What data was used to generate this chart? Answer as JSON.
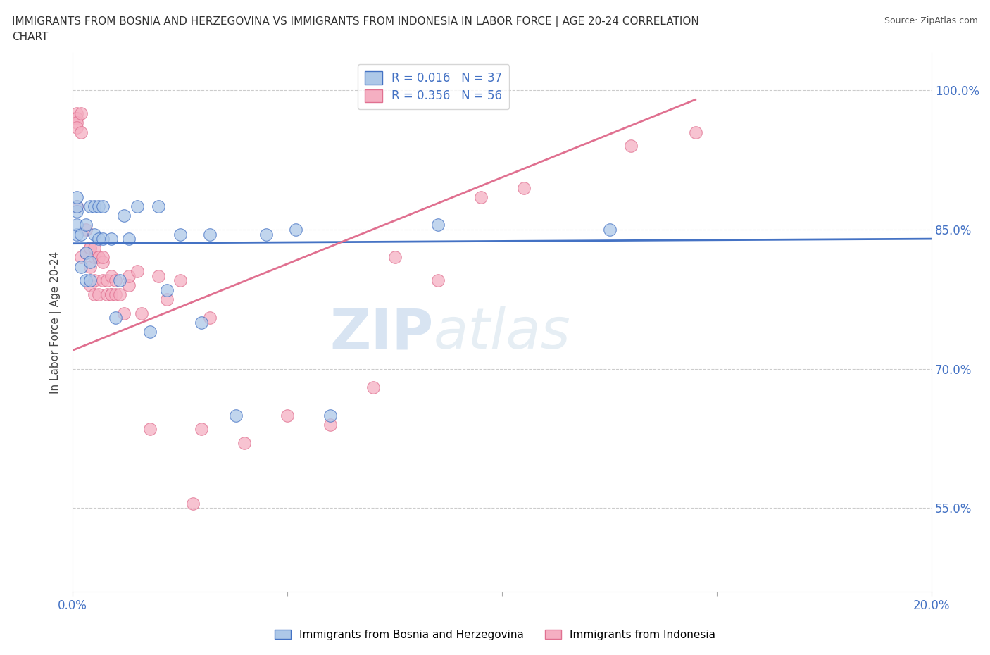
{
  "title_line1": "IMMIGRANTS FROM BOSNIA AND HERZEGOVINA VS IMMIGRANTS FROM INDONESIA IN LABOR FORCE | AGE 20-24 CORRELATION",
  "title_line2": "CHART",
  "source": "Source: ZipAtlas.com",
  "ylabel": "In Labor Force | Age 20-24",
  "xlim": [
    0.0,
    0.2
  ],
  "ylim": [
    0.46,
    1.04
  ],
  "yticks": [
    0.55,
    0.7,
    0.85,
    1.0
  ],
  "ytick_labels": [
    "55.0%",
    "70.0%",
    "85.0%",
    "100.0%"
  ],
  "xticks": [
    0.0,
    0.05,
    0.1,
    0.15,
    0.2
  ],
  "xtick_labels": [
    "0.0%",
    "",
    "",
    "",
    "20.0%"
  ],
  "blue_R": "0.016",
  "blue_N": "37",
  "pink_R": "0.356",
  "pink_N": "56",
  "blue_color": "#adc8e8",
  "pink_color": "#f5afc2",
  "blue_line_color": "#4472c4",
  "pink_line_color": "#e07090",
  "watermark_1": "ZIP",
  "watermark_2": "atlas",
  "blue_scatter_x": [
    0.001,
    0.001,
    0.001,
    0.001,
    0.001,
    0.002,
    0.002,
    0.003,
    0.003,
    0.003,
    0.004,
    0.004,
    0.004,
    0.005,
    0.005,
    0.006,
    0.006,
    0.007,
    0.007,
    0.009,
    0.01,
    0.011,
    0.012,
    0.013,
    0.015,
    0.018,
    0.02,
    0.022,
    0.025,
    0.03,
    0.032,
    0.038,
    0.045,
    0.052,
    0.06,
    0.085,
    0.125
  ],
  "blue_scatter_y": [
    0.845,
    0.855,
    0.87,
    0.875,
    0.885,
    0.81,
    0.845,
    0.795,
    0.825,
    0.855,
    0.795,
    0.815,
    0.875,
    0.845,
    0.875,
    0.84,
    0.875,
    0.84,
    0.875,
    0.84,
    0.755,
    0.795,
    0.865,
    0.84,
    0.875,
    0.74,
    0.875,
    0.785,
    0.845,
    0.75,
    0.845,
    0.65,
    0.845,
    0.85,
    0.65,
    0.855,
    0.85
  ],
  "pink_scatter_x": [
    0.0005,
    0.0005,
    0.001,
    0.001,
    0.001,
    0.001,
    0.001,
    0.002,
    0.002,
    0.002,
    0.003,
    0.003,
    0.004,
    0.004,
    0.004,
    0.004,
    0.005,
    0.005,
    0.005,
    0.005,
    0.006,
    0.006,
    0.006,
    0.007,
    0.007,
    0.007,
    0.008,
    0.008,
    0.009,
    0.009,
    0.009,
    0.01,
    0.01,
    0.011,
    0.012,
    0.013,
    0.013,
    0.015,
    0.016,
    0.018,
    0.02,
    0.022,
    0.025,
    0.028,
    0.03,
    0.032,
    0.04,
    0.05,
    0.06,
    0.07,
    0.075,
    0.085,
    0.095,
    0.105,
    0.13,
    0.145
  ],
  "pink_scatter_y": [
    0.97,
    0.97,
    0.975,
    0.97,
    0.965,
    0.96,
    0.875,
    0.82,
    0.975,
    0.955,
    0.85,
    0.825,
    0.83,
    0.81,
    0.79,
    0.83,
    0.82,
    0.795,
    0.83,
    0.78,
    0.78,
    0.82,
    0.82,
    0.815,
    0.795,
    0.82,
    0.795,
    0.78,
    0.78,
    0.78,
    0.8,
    0.78,
    0.795,
    0.78,
    0.76,
    0.79,
    0.8,
    0.805,
    0.76,
    0.635,
    0.8,
    0.775,
    0.795,
    0.555,
    0.635,
    0.755,
    0.62,
    0.65,
    0.64,
    0.68,
    0.82,
    0.795,
    0.885,
    0.895,
    0.94,
    0.955
  ],
  "blue_line_x0": 0.0,
  "blue_line_x1": 0.2,
  "blue_line_y0": 0.835,
  "blue_line_y1": 0.84,
  "pink_line_x0": 0.0,
  "pink_line_x1": 0.145,
  "pink_line_y0": 0.72,
  "pink_line_y1": 0.99
}
